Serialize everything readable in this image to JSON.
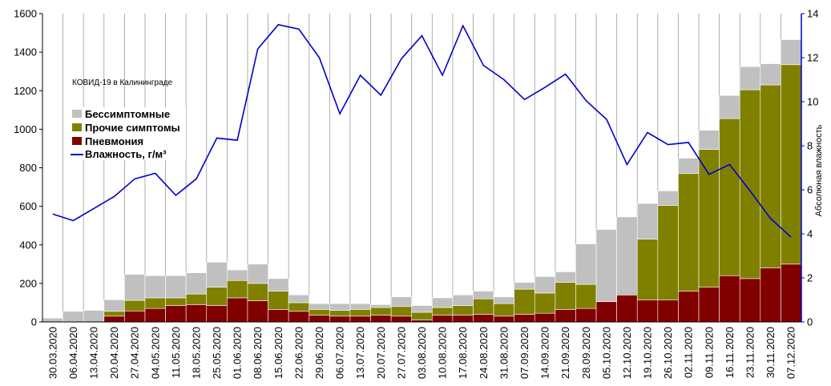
{
  "chart_data": {
    "type": "bar",
    "stacked": true,
    "annotation": "КОВИД-19 в Калининграде",
    "y2label": "Абсолюная влажность",
    "ylim": [
      0,
      1600
    ],
    "yticks": [
      0,
      200,
      400,
      600,
      800,
      1000,
      1200,
      1400,
      1600
    ],
    "y2lim": [
      0,
      14
    ],
    "y2ticks": [
      0,
      2,
      4,
      6,
      8,
      10,
      12,
      14
    ],
    "grid": "vertical",
    "legend_position": "left",
    "categories": [
      "30.03.2020",
      "06.04.2020",
      "13.04.2020",
      "20.04.2020",
      "27.04.2020",
      "04.05.2020",
      "11.05.2020",
      "18.05.2020",
      "25.05.2020",
      "01.06.2020",
      "08.06.2020",
      "15.06.2020",
      "22.06.2020",
      "29.06.2020",
      "06.07.2020",
      "13.07.2020",
      "20.07.2020",
      "27.07.2020",
      "03.08.2020",
      "10.08.2020",
      "17.08.2020",
      "24.08.2020",
      "31.08.2020",
      "07.09.2020",
      "14.09.2020",
      "21.09.2020",
      "28.09.2020",
      "05.10.2020",
      "12.10.2020",
      "19.10.2020",
      "26.10.2020",
      "02.11.2020",
      "09.11.2020",
      "16.11.2020",
      "23.11.2020",
      "30.11.2020",
      "07.12.2020"
    ],
    "series": [
      {
        "name": "Пневмония",
        "color": "#800000",
        "values": [
          0,
          0,
          0,
          30,
          57,
          70,
          85,
          90,
          85,
          125,
          110,
          65,
          55,
          35,
          30,
          30,
          35,
          30,
          10,
          35,
          35,
          40,
          30,
          40,
          45,
          65,
          70,
          105,
          140,
          115,
          115,
          160,
          180,
          240,
          225,
          280,
          300
        ]
      },
      {
        "name": "Прочие симптомы",
        "color": "#808000",
        "values": [
          0,
          0,
          0,
          25,
          55,
          55,
          40,
          55,
          95,
          90,
          90,
          95,
          45,
          30,
          30,
          35,
          40,
          50,
          40,
          40,
          50,
          80,
          65,
          130,
          105,
          140,
          125,
          0,
          0,
          315,
          490,
          610,
          715,
          815,
          980,
          950,
          1035
        ]
      },
      {
        "name": "Бессимптомные",
        "color": "#c0c0c0",
        "values": [
          20,
          55,
          60,
          60,
          135,
          115,
          115,
          110,
          130,
          55,
          100,
          65,
          40,
          30,
          35,
          30,
          15,
          50,
          35,
          50,
          55,
          40,
          35,
          35,
          85,
          55,
          210,
          375,
          405,
          185,
          75,
          80,
          100,
          120,
          120,
          110,
          130
        ]
      }
    ],
    "line_series": {
      "name": "Влажность, г/м³",
      "color": "#0000cc",
      "axis": "right",
      "values": [
        4.9,
        4.6,
        5.15,
        5.7,
        6.5,
        6.75,
        5.75,
        6.5,
        8.35,
        8.25,
        12.4,
        13.5,
        13.3,
        12.0,
        9.45,
        11.2,
        10.3,
        11.95,
        13.0,
        11.2,
        13.45,
        11.65,
        11.0,
        10.1,
        10.65,
        11.25,
        10.05,
        9.2,
        7.15,
        8.6,
        8.05,
        8.15,
        6.7,
        7.15,
        5.95,
        4.7,
        3.85
      ]
    },
    "legend": [
      "Бессимптомные",
      "Прочие симптомы",
      "Пневмония",
      "Влажность, г/м³"
    ]
  }
}
